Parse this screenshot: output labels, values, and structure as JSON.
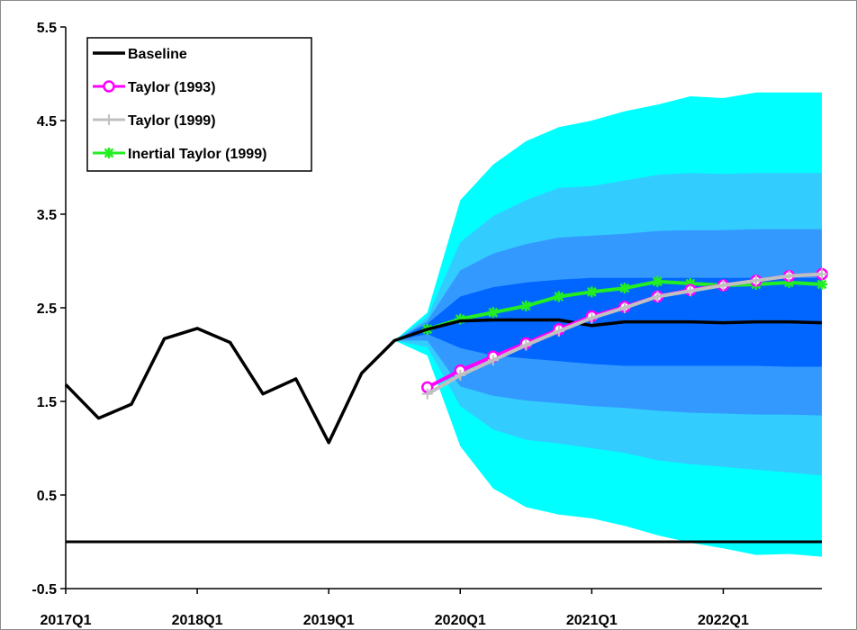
{
  "chart_data": {
    "type": "line",
    "x_ticks": [
      "2017Q1",
      "2018Q1",
      "2019Q1",
      "2020Q1",
      "2021Q1",
      "2022Q1"
    ],
    "y_ticks": [
      "5.5",
      "4.5",
      "3.5",
      "2.5",
      "1.5",
      "0.5",
      "-0.5"
    ],
    "ylim": [
      -0.5,
      5.5
    ],
    "x_quarter_index_range": [
      0,
      23
    ],
    "grid": false,
    "zero_line": 0,
    "legend_position": "top-left",
    "colors": {
      "baseline": "#000000",
      "taylor1993": "#ff00ff",
      "taylor1999": "#c0c0c0",
      "inertial": "#22ee22",
      "band_outer": "#00ffff",
      "band_2": "#33ccff",
      "band_3": "#3399ff",
      "band_inner": "#0066ff"
    },
    "series": [
      {
        "name": "Baseline",
        "x_index": [
          0,
          1,
          2,
          3,
          4,
          5,
          6,
          7,
          8,
          9,
          10,
          11,
          12,
          13,
          14,
          15,
          16,
          17,
          18,
          19,
          20,
          21,
          22,
          23
        ],
        "values": [
          1.68,
          1.32,
          1.47,
          2.17,
          2.28,
          2.13,
          1.58,
          1.74,
          1.06,
          1.8,
          2.15,
          2.27,
          2.36,
          2.37,
          2.37,
          2.37,
          2.31,
          2.35,
          2.35,
          2.35,
          2.34,
          2.35,
          2.35,
          2.34
        ]
      },
      {
        "name": "Taylor (1993)",
        "marker": "circle",
        "x_index": [
          11,
          12,
          13,
          14,
          15,
          16,
          17,
          18,
          19,
          20,
          21,
          22,
          23
        ],
        "values": [
          1.65,
          1.83,
          1.98,
          2.12,
          2.27,
          2.41,
          2.51,
          2.62,
          2.69,
          2.74,
          2.79,
          2.84,
          2.86
        ]
      },
      {
        "name": "Taylor (1999)",
        "marker": "plus",
        "x_index": [
          11,
          12,
          13,
          14,
          15,
          16,
          17,
          18,
          19,
          20,
          21,
          22,
          23
        ],
        "values": [
          1.58,
          1.78,
          1.94,
          2.1,
          2.25,
          2.39,
          2.5,
          2.62,
          2.68,
          2.74,
          2.79,
          2.84,
          2.86
        ]
      },
      {
        "name": "Inertial Taylor (1999)",
        "marker": "star",
        "x_index": [
          11,
          12,
          13,
          14,
          15,
          16,
          17,
          18,
          19,
          20,
          21,
          22,
          23
        ],
        "values": [
          2.27,
          2.38,
          2.45,
          2.52,
          2.62,
          2.67,
          2.71,
          2.78,
          2.76,
          2.74,
          2.75,
          2.77,
          2.75
        ]
      }
    ],
    "fan_bands": {
      "x_index": [
        10,
        11,
        12,
        13,
        14,
        15,
        16,
        17,
        18,
        19,
        20,
        21,
        22,
        23
      ],
      "outer_upper": [
        2.15,
        2.45,
        3.65,
        4.03,
        4.28,
        4.43,
        4.5,
        4.6,
        4.67,
        4.76,
        4.74,
        4.8,
        4.8,
        4.8
      ],
      "band2_upper": [
        2.15,
        2.4,
        3.2,
        3.48,
        3.65,
        3.78,
        3.8,
        3.86,
        3.92,
        3.94,
        3.93,
        3.94,
        3.94,
        3.94
      ],
      "band3_upper": [
        2.15,
        2.36,
        2.9,
        3.08,
        3.18,
        3.25,
        3.27,
        3.29,
        3.32,
        3.33,
        3.33,
        3.34,
        3.34,
        3.34
      ],
      "inner_upper": [
        2.15,
        2.33,
        2.62,
        2.72,
        2.77,
        2.8,
        2.82,
        2.82,
        2.82,
        2.82,
        2.82,
        2.82,
        2.82,
        2.82
      ],
      "inner_lower": [
        2.15,
        2.22,
        2.07,
        1.99,
        1.96,
        1.93,
        1.9,
        1.88,
        1.88,
        1.88,
        1.88,
        1.88,
        1.87,
        1.87
      ],
      "band3_lower": [
        2.15,
        2.15,
        1.66,
        1.56,
        1.51,
        1.48,
        1.45,
        1.43,
        1.4,
        1.38,
        1.37,
        1.36,
        1.36,
        1.35
      ],
      "band2_lower": [
        2.15,
        2.08,
        1.45,
        1.2,
        1.09,
        1.05,
        1.0,
        0.95,
        0.87,
        0.83,
        0.8,
        0.77,
        0.74,
        0.71
      ],
      "outer_lower": [
        2.15,
        1.99,
        1.02,
        0.57,
        0.37,
        0.29,
        0.25,
        0.17,
        0.07,
        -0.01,
        -0.07,
        -0.14,
        -0.13,
        -0.16
      ]
    }
  }
}
